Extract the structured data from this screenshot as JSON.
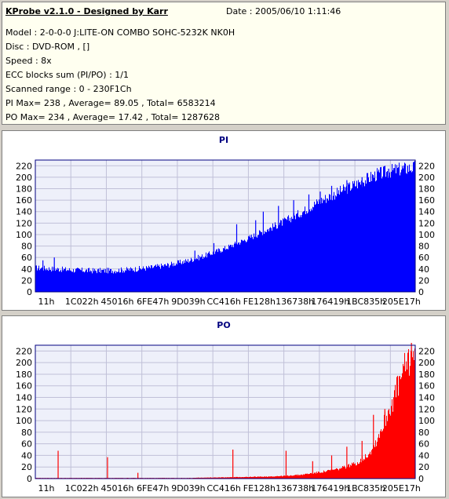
{
  "header": {
    "title": "KProbe v2.1.0 - Designed by Karr",
    "date": "Date : 2005/06/10 1:11:46",
    "lines": [
      "Model : 2-0-0-0 J:LITE-ON COMBO SOHC-5232K NK0H",
      "Disc : DVD-ROM ,  []",
      "Speed : 8x",
      "ECC blocks sum (PI/PO) : 1/1",
      "Scanned range : 0 - 230F1Ch",
      "PI Max= 238 , Average= 89.05 , Total= 6583214",
      "PO Max= 234 , Average= 17.42 , Total= 1287628"
    ]
  },
  "colors": {
    "pi": "#0000ff",
    "po": "#ff0000",
    "grid": "#c0c0d8",
    "title": "#000080"
  },
  "chart_data": [
    {
      "type": "area",
      "title": "PI",
      "ylim": [
        0,
        230
      ],
      "yticks": [
        0,
        20,
        40,
        60,
        80,
        100,
        120,
        140,
        160,
        180,
        200,
        220
      ],
      "xticks": [
        "11h",
        "1C022h",
        "45016h",
        "6FE47h",
        "9D039h",
        "CC416h",
        "FE128h",
        "136738h",
        "176419h",
        "1BC835h",
        "205E17h"
      ],
      "grid": true,
      "series": [
        {
          "x": [
            0,
            0.05,
            0.1,
            0.15,
            0.2,
            0.25,
            0.3,
            0.35,
            0.4,
            0.45,
            0.5,
            0.55,
            0.6,
            0.65,
            0.7,
            0.75,
            0.8,
            0.85,
            0.9,
            0.95,
            1.0
          ],
          "values": [
            40,
            38,
            36,
            35,
            35,
            37,
            40,
            45,
            52,
            62,
            74,
            88,
            103,
            118,
            135,
            155,
            170,
            185,
            200,
            208,
            212
          ],
          "spikes": [
            [
              0.02,
              55
            ],
            [
              0.05,
              60
            ],
            [
              0.42,
              72
            ],
            [
              0.47,
              85
            ],
            [
              0.53,
              118
            ],
            [
              0.58,
              125
            ],
            [
              0.6,
              140
            ],
            [
              0.64,
              150
            ],
            [
              0.68,
              160
            ],
            [
              0.72,
              170
            ],
            [
              0.75,
              175
            ],
            [
              0.78,
              185
            ],
            [
              0.82,
              195
            ],
            [
              0.86,
              200
            ],
            [
              0.9,
              210
            ],
            [
              0.93,
              215
            ],
            [
              0.98,
              220
            ]
          ]
        }
      ]
    },
    {
      "type": "area",
      "title": "PO",
      "ylim": [
        0,
        230
      ],
      "yticks": [
        0,
        20,
        40,
        60,
        80,
        100,
        120,
        140,
        160,
        180,
        200,
        220
      ],
      "xticks": [
        "11h",
        "1C022h",
        "45016h",
        "6FE47h",
        "9D039h",
        "CC416h",
        "FE128h",
        "136738h",
        "176419h",
        "1BC835h",
        "205E17h"
      ],
      "grid": true,
      "series": [
        {
          "x": [
            0,
            0.1,
            0.2,
            0.3,
            0.4,
            0.5,
            0.6,
            0.65,
            0.7,
            0.75,
            0.8,
            0.85,
            0.88,
            0.9,
            0.92,
            0.94,
            0.96,
            0.98,
            1.0
          ],
          "values": [
            1,
            1,
            1,
            1,
            1,
            2,
            3,
            4,
            6,
            10,
            15,
            25,
            40,
            60,
            90,
            120,
            150,
            180,
            205
          ],
          "spikes": [
            [
              0.06,
              48
            ],
            [
              0.19,
              37
            ],
            [
              0.27,
              10
            ],
            [
              0.52,
              50
            ],
            [
              0.66,
              48
            ],
            [
              0.73,
              30
            ],
            [
              0.78,
              40
            ],
            [
              0.82,
              55
            ],
            [
              0.86,
              65
            ],
            [
              0.89,
              110
            ],
            [
              0.92,
              120
            ],
            [
              0.95,
              140
            ],
            [
              0.97,
              170
            ],
            [
              0.99,
              234
            ]
          ]
        }
      ]
    }
  ]
}
